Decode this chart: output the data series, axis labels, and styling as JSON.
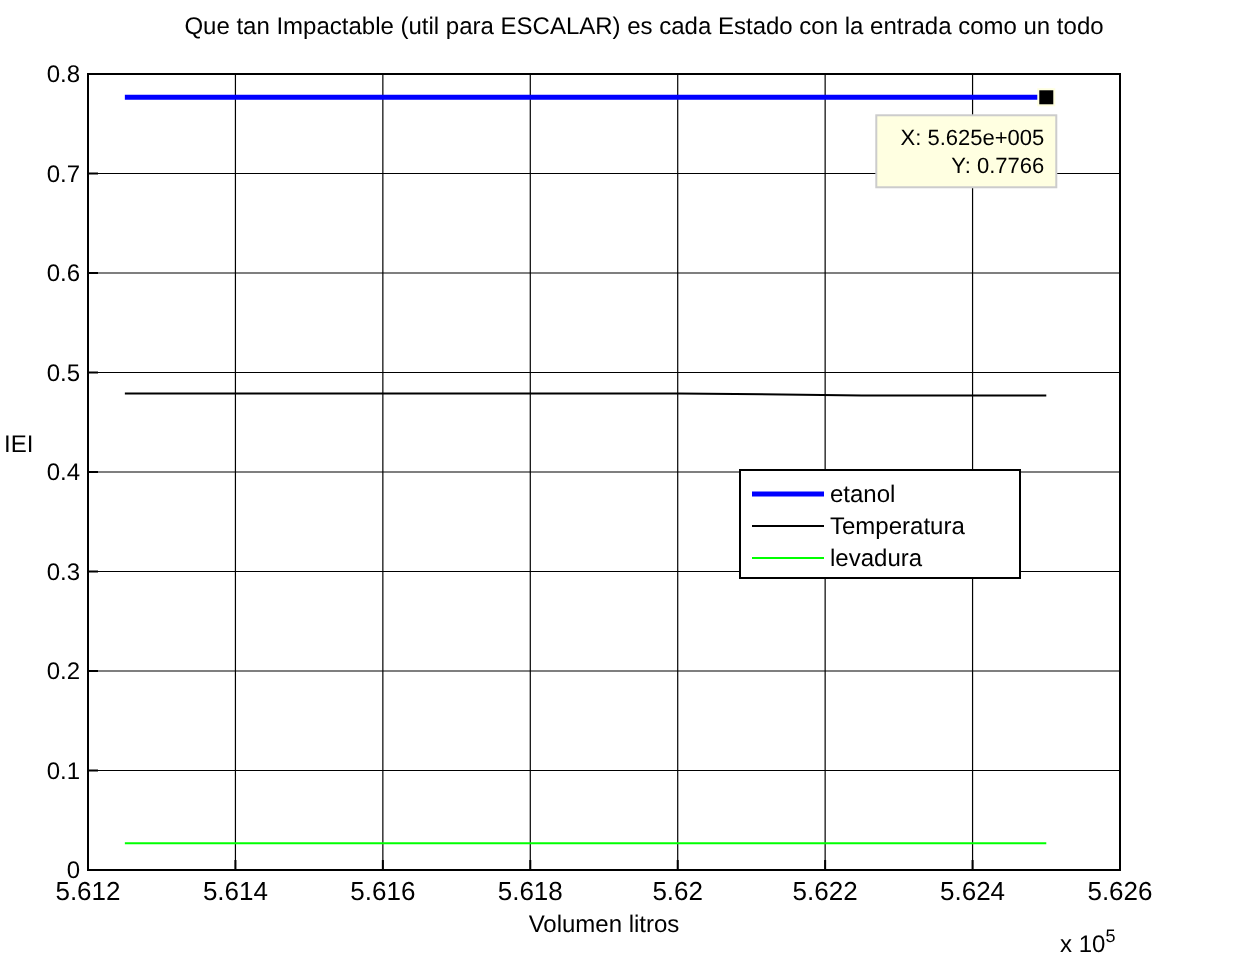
{
  "chart_data": {
    "type": "line",
    "title": "Que tan Impactable (util para ESCALAR) es cada Estado con la entrada como un todo",
    "xlabel": "Volumen litros",
    "ylabel": "IEI",
    "x": [
      5.6125,
      5.62,
      5.6225,
      5.625
    ],
    "series": [
      {
        "name": "etanol",
        "color": "#0000ff",
        "values": [
          0.7766,
          0.7766,
          0.7766,
          0.7766
        ]
      },
      {
        "name": "Temperatura",
        "color": "#000000",
        "values": [
          0.479,
          0.479,
          0.477,
          0.477
        ]
      },
      {
        "name": "levadura",
        "color": "#00ff00",
        "values": [
          0.027,
          0.027,
          0.027,
          0.027
        ]
      }
    ],
    "xlim": [
      5.612,
      5.626
    ],
    "xticks": [
      5.612,
      5.614,
      5.616,
      5.618,
      5.62,
      5.622,
      5.624,
      5.626
    ],
    "ylim": [
      0,
      0.8
    ],
    "yticks": [
      0,
      0.1,
      0.2,
      0.3,
      0.4,
      0.5,
      0.6,
      0.7,
      0.8
    ],
    "annotations": [
      "x 10$^{5}$",
      {
        "text": "X: 5.625e+005\nY: 0.7766",
        "x": 5.625,
        "y": 0.7766
      }
    ],
    "grid": true,
    "legend": "right",
    "marker": "none",
    "line_style": "solid"
  }
}
